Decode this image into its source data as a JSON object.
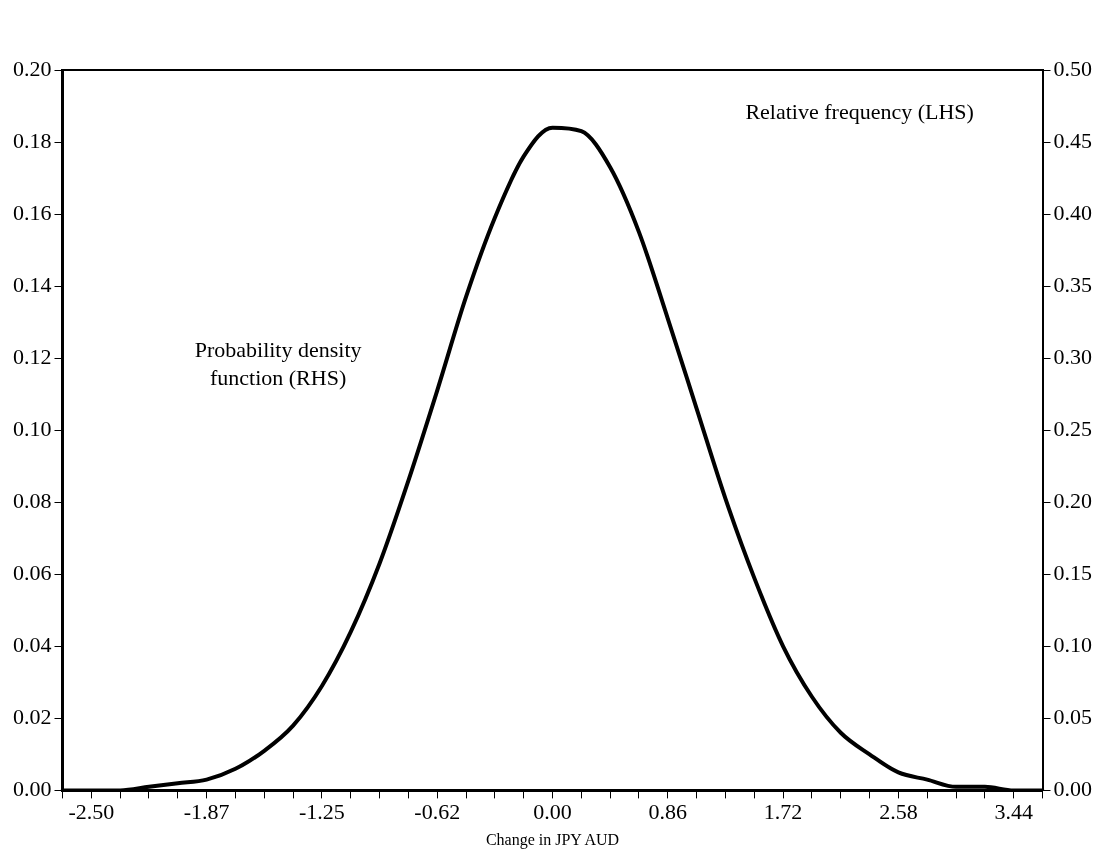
{
  "chart_data": {
    "type": "line",
    "xlabel": "Change in JPY AUD",
    "categories": [
      null,
      "-2.50",
      null,
      null,
      null,
      "-1.87",
      null,
      null,
      null,
      "-1.25",
      null,
      null,
      null,
      "-0.62",
      null,
      null,
      null,
      "0.00",
      null,
      null,
      null,
      "0.86",
      null,
      null,
      null,
      "1.72",
      null,
      null,
      null,
      "2.58",
      null,
      null,
      null,
      "3.44",
      null
    ],
    "series": [
      {
        "color": "#000000",
        "values": [
          0.0,
          0.0,
          0.0,
          0.001,
          0.002,
          0.003,
          0.006,
          0.011,
          0.018,
          0.029,
          0.044,
          0.063,
          0.086,
          0.111,
          0.137,
          0.159,
          0.176,
          0.184,
          0.183,
          0.173,
          0.155,
          0.131,
          0.106,
          0.081,
          0.059,
          0.04,
          0.026,
          0.016,
          0.01,
          0.005,
          0.003,
          0.001,
          0.001,
          0.0,
          0.0
        ]
      }
    ],
    "ylim": [
      0,
      0.2
    ],
    "yticks": [
      {
        "value": 0,
        "label": "0.00"
      },
      {
        "value": 0.02,
        "label": "0.02"
      },
      {
        "value": 0.04,
        "label": "0.04"
      },
      {
        "value": 0.06,
        "label": "0.06"
      },
      {
        "value": 0.08,
        "label": "0.08"
      },
      {
        "value": 0.1,
        "label": "0.10"
      },
      {
        "value": 0.12,
        "label": "0.12"
      },
      {
        "value": 0.14,
        "label": "0.14"
      },
      {
        "value": 0.16,
        "label": "0.16"
      },
      {
        "value": 0.18,
        "label": "0.18"
      },
      {
        "value": 0.2,
        "label": "0.20"
      }
    ],
    "y2lim": [
      0,
      0.5
    ],
    "y2ticks": [
      {
        "value": 0,
        "label": "0.00"
      },
      {
        "value": 0.05,
        "label": "0.05"
      },
      {
        "value": 0.1,
        "label": "0.10"
      },
      {
        "value": 0.15,
        "label": "0.15"
      },
      {
        "value": 0.2,
        "label": "0.20"
      },
      {
        "value": 0.25,
        "label": "0.25"
      },
      {
        "value": 0.3,
        "label": "0.30"
      },
      {
        "value": 0.35,
        "label": "0.35"
      },
      {
        "value": 0.4,
        "label": "0.40"
      },
      {
        "value": 0.45,
        "label": "0.45"
      },
      {
        "value": 0.5,
        "label": "0.50"
      }
    ],
    "annotations": [
      "Relative frequency (LHS)",
      "Probability density\nfunction (RHS)"
    ],
    "grid": false,
    "legend": false,
    "marker": "none",
    "line_style": "solid"
  }
}
